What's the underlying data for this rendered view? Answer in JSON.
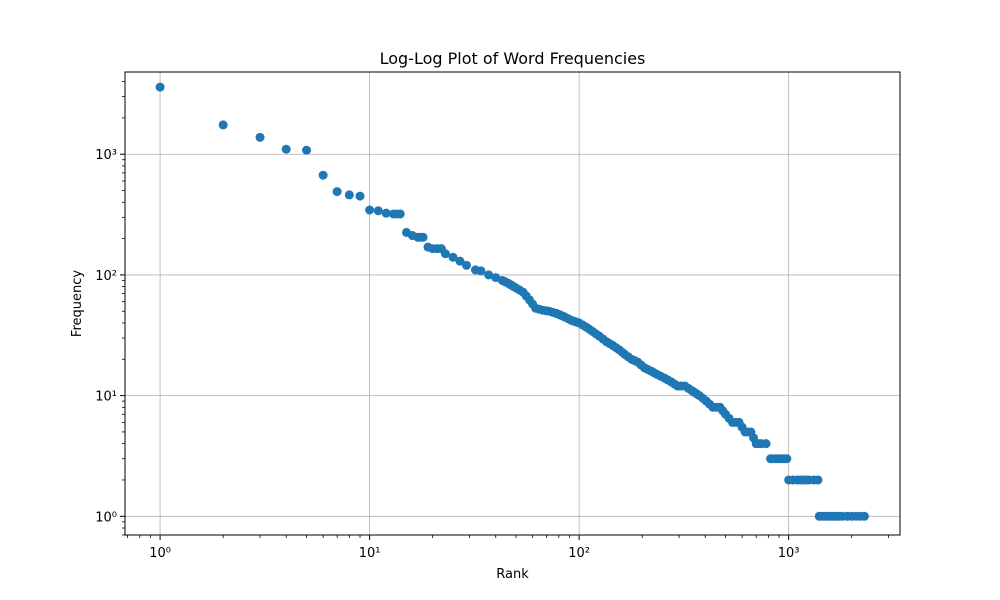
{
  "chart_data": {
    "type": "scatter",
    "title": "Log-Log Plot of Word Frequencies",
    "xlabel": "Rank",
    "ylabel": "Frequency",
    "xscale": "log",
    "yscale": "log",
    "xlim": [
      0.68,
      3400
    ],
    "ylim": [
      0.7,
      4800
    ],
    "grid": true,
    "marker_color": "#1f77b4",
    "x_ticks": [
      {
        "value": 1,
        "label": "10⁰"
      },
      {
        "value": 10,
        "label": "10¹"
      },
      {
        "value": 100,
        "label": "10²"
      },
      {
        "value": 1000,
        "label": "10³"
      }
    ],
    "y_ticks": [
      {
        "value": 1,
        "label": "10⁰"
      },
      {
        "value": 10,
        "label": "10¹"
      },
      {
        "value": 100,
        "label": "10²"
      },
      {
        "value": 1000,
        "label": "10³"
      }
    ],
    "points": [
      [
        1,
        3600
      ],
      [
        2,
        1750
      ],
      [
        3,
        1380
      ],
      [
        4,
        1100
      ],
      [
        5,
        1080
      ],
      [
        6,
        670
      ],
      [
        7,
        490
      ],
      [
        8,
        460
      ],
      [
        9,
        450
      ],
      [
        10,
        345
      ],
      [
        11,
        340
      ],
      [
        12,
        325
      ],
      [
        13,
        320
      ],
      [
        14,
        320
      ],
      [
        15,
        225
      ],
      [
        16,
        212
      ],
      [
        17,
        205
      ],
      [
        18,
        205
      ],
      [
        19,
        170
      ],
      [
        20,
        165
      ],
      [
        21,
        165
      ],
      [
        22,
        165
      ],
      [
        23,
        150
      ],
      [
        25,
        140
      ],
      [
        27,
        130
      ],
      [
        29,
        120
      ],
      [
        32,
        110
      ],
      [
        34,
        108
      ],
      [
        37,
        100
      ],
      [
        40,
        95
      ],
      [
        43,
        90
      ],
      [
        46,
        85
      ],
      [
        50,
        78
      ],
      [
        54,
        72
      ],
      [
        58,
        62
      ],
      [
        62,
        53
      ],
      [
        67,
        51
      ],
      [
        72,
        50
      ],
      [
        78,
        48
      ],
      [
        85,
        45
      ],
      [
        92,
        42
      ],
      [
        100,
        40
      ],
      [
        108,
        37
      ],
      [
        116,
        34
      ],
      [
        125,
        31
      ],
      [
        135,
        28
      ],
      [
        145,
        26
      ],
      [
        155,
        24
      ],
      [
        165,
        22
      ],
      [
        178,
        20
      ],
      [
        190,
        19
      ],
      [
        205,
        17
      ],
      [
        220,
        16
      ],
      [
        235,
        15
      ],
      [
        255,
        14
      ],
      [
        275,
        13
      ],
      [
        295,
        12
      ],
      [
        320,
        12
      ],
      [
        345,
        11
      ],
      [
        375,
        10
      ],
      [
        405,
        9
      ],
      [
        435,
        8
      ],
      [
        470,
        8
      ],
      [
        500,
        7
      ],
      [
        540,
        6
      ],
      [
        580,
        6
      ],
      [
        620,
        5
      ],
      [
        660,
        5
      ],
      [
        700,
        4
      ],
      [
        740,
        4
      ],
      [
        780,
        4
      ],
      [
        820,
        3
      ],
      [
        870,
        3
      ],
      [
        920,
        3
      ],
      [
        980,
        3
      ],
      [
        1000,
        2
      ],
      [
        1050,
        2
      ],
      [
        1100,
        2
      ],
      [
        1180,
        2
      ],
      [
        1250,
        2
      ],
      [
        1320,
        2
      ],
      [
        1380,
        2
      ],
      [
        1400,
        1
      ],
      [
        1500,
        1
      ],
      [
        1600,
        1
      ],
      [
        1700,
        1
      ],
      [
        1800,
        1
      ],
      [
        1900,
        1
      ],
      [
        2000,
        1
      ],
      [
        2100,
        1
      ],
      [
        2200,
        1
      ],
      [
        2300,
        1
      ]
    ]
  }
}
